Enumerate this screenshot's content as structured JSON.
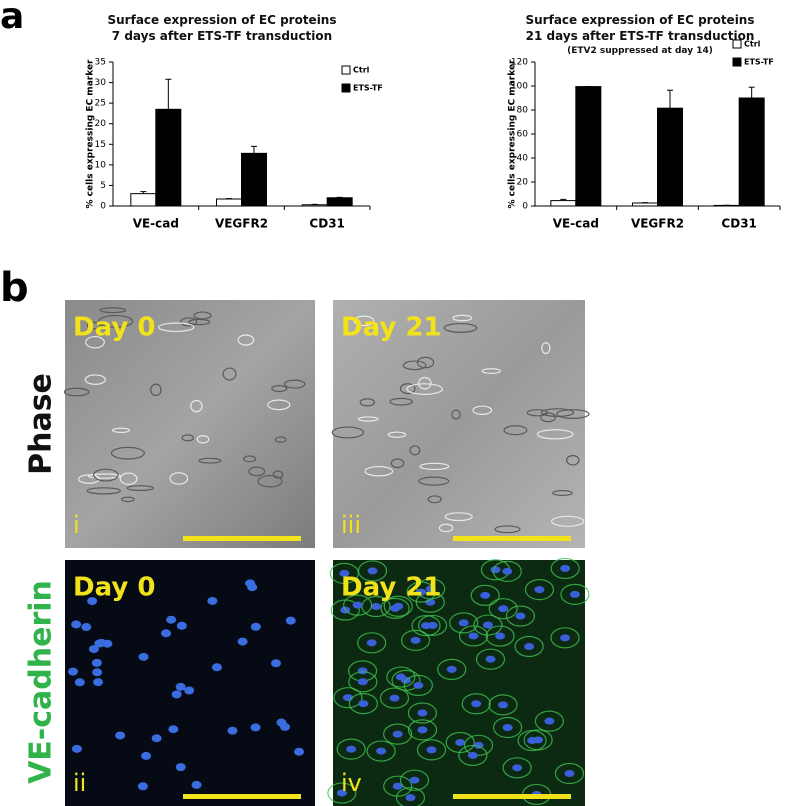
{
  "chart_data": [
    {
      "type": "bar",
      "title": "Surface expression of EC proteins\n7 days after ETS-TF transduction",
      "ylabel": "% cells expressing EC marker",
      "categories": [
        "VE-cad",
        "VEGFR2",
        "CD31"
      ],
      "series": [
        {
          "name": "Ctrl",
          "color": "#ffffff",
          "values": [
            3,
            1.7,
            0.3
          ],
          "errors": [
            0.5,
            0.1,
            0.1
          ]
        },
        {
          "name": "ETS-TF",
          "color": "#000000",
          "values": [
            23.5,
            12.8,
            2.0
          ],
          "errors": [
            7.3,
            1.7,
            0.1
          ]
        }
      ],
      "ylim": [
        0,
        35
      ],
      "yticks": [
        0,
        5,
        10,
        15,
        20,
        25,
        30,
        35
      ],
      "legend": "upper right"
    },
    {
      "type": "bar",
      "title": "Surface expression of EC proteins\n21 days after ETS-TF transduction",
      "subtitle": "(ETV2 suppressed at day 14)",
      "ylabel": "% cells expressing EC marker",
      "categories": [
        "VE-cad",
        "VEGFR2",
        "CD31"
      ],
      "series": [
        {
          "name": "Ctrl",
          "color": "#ffffff",
          "values": [
            4.5,
            2.5,
            0.5
          ],
          "errors": [
            1,
            0.3,
            0.1
          ]
        },
        {
          "name": "ETS-TF",
          "color": "#000000",
          "values": [
            99.5,
            81.5,
            90
          ],
          "errors": [
            0,
            15,
            9
          ]
        }
      ],
      "ylim": [
        0,
        120
      ],
      "yticks": [
        0,
        20,
        40,
        60,
        80,
        100,
        120
      ],
      "legend": "upper right"
    }
  ],
  "panels": {
    "labels": [
      "a",
      "b"
    ],
    "rows": [
      "Phase",
      "VE-cadherin"
    ],
    "images": [
      {
        "day": "Day 0",
        "numeral": "i"
      },
      {
        "day": "Day 21",
        "numeral": "iii"
      },
      {
        "day": "Day 0",
        "numeral": "ii"
      },
      {
        "day": "Day 21",
        "numeral": "iv"
      }
    ]
  }
}
